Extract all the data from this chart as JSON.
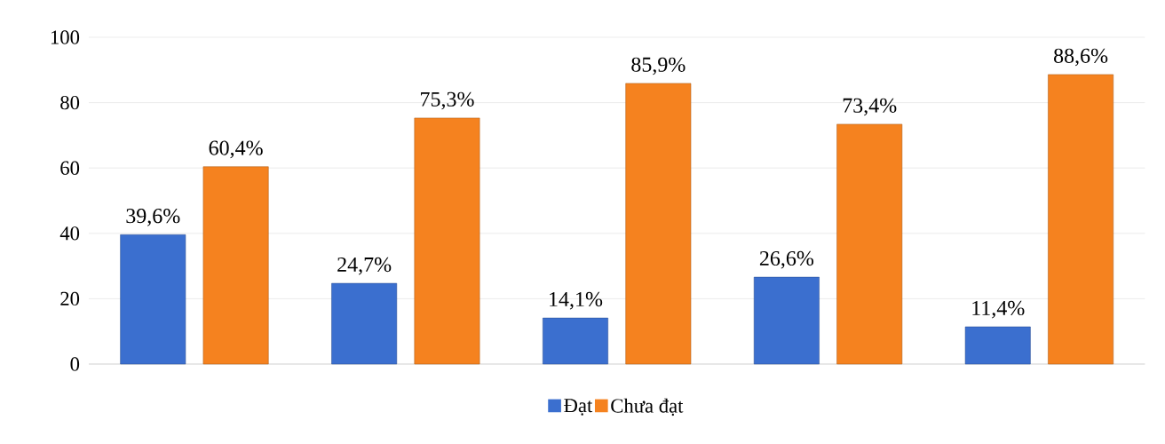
{
  "chart_data": {
    "type": "bar",
    "categories": [
      null,
      null,
      null,
      null,
      null
    ],
    "series": [
      {
        "name": "Đạt",
        "color": "#3b6fcf",
        "values": [
          39.6,
          24.7,
          14.1,
          26.6,
          11.4
        ],
        "value_labels": [
          "39,6%",
          "24,7%",
          "14,1%",
          "26,6%",
          "11,4%"
        ]
      },
      {
        "name": "Chưa đạt",
        "color": "#f5821f",
        "values": [
          60.4,
          75.3,
          85.9,
          73.4,
          88.6
        ],
        "value_labels": [
          "60,4%",
          "75,3%",
          "85,9%",
          "73,4%",
          "88,6%"
        ]
      }
    ],
    "ylim": [
      0,
      100
    ],
    "yticks": [
      0,
      20,
      40,
      60,
      80,
      100
    ],
    "grid": "y",
    "legend": "bottom"
  }
}
